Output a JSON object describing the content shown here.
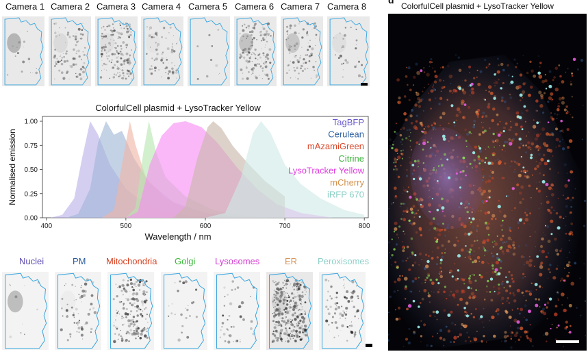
{
  "cameras": {
    "labels": [
      "Camera 1",
      "Camera 2",
      "Camera 3",
      "Camera 4",
      "Camera 5",
      "Camera 6",
      "Camera 7",
      "Camera 8"
    ]
  },
  "organelles": {
    "labels": [
      {
        "text": "Nuclei",
        "color": "#5b4ab0"
      },
      {
        "text": "PM",
        "color": "#2a5a9a"
      },
      {
        "text": "Mitochondria",
        "color": "#d8401f"
      },
      {
        "text": "Golgi",
        "color": "#3cb93c"
      },
      {
        "text": "Lysosomes",
        "color": "#d43cd4"
      },
      {
        "text": "ER",
        "color": "#d6955a"
      },
      {
        "text": "Peroxisomes",
        "color": "#8fd0c8"
      }
    ]
  },
  "chart_data": {
    "type": "area",
    "title": "ColorfulCell plasmid + LysoTracker Yellow",
    "xlabel": "Wavelength / nm",
    "ylabel": "Normalised emission",
    "xlim": [
      395,
      805
    ],
    "ylim": [
      0,
      1.05
    ],
    "xticks": [
      400,
      500,
      600,
      700,
      800
    ],
    "yticks": [
      0.0,
      0.25,
      0.5,
      0.75,
      1.0
    ],
    "ytick_labels": [
      "0.00",
      "0.25",
      "0.50",
      "0.75",
      "1.00"
    ],
    "legend_position": "top-right",
    "series": [
      {
        "name": "TagBFP",
        "color": "#6a5acd",
        "fill": "#b9b0e8",
        "points": [
          [
            405,
            0
          ],
          [
            420,
            0.03
          ],
          [
            435,
            0.2
          ],
          [
            445,
            0.62
          ],
          [
            455,
            1.0
          ],
          [
            465,
            0.86
          ],
          [
            480,
            0.55
          ],
          [
            500,
            0.3
          ],
          [
            525,
            0.14
          ],
          [
            550,
            0.06
          ],
          [
            580,
            0.02
          ],
          [
            610,
            0
          ]
        ]
      },
      {
        "name": "Cerulean",
        "color": "#2f5f9f",
        "fill": "#9fb6d6",
        "points": [
          [
            425,
            0
          ],
          [
            440,
            0.04
          ],
          [
            455,
            0.3
          ],
          [
            465,
            0.78
          ],
          [
            475,
            1.0
          ],
          [
            485,
            0.86
          ],
          [
            495,
            0.9
          ],
          [
            510,
            0.62
          ],
          [
            530,
            0.36
          ],
          [
            560,
            0.16
          ],
          [
            600,
            0.05
          ],
          [
            650,
            0
          ]
        ]
      },
      {
        "name": "mAzamiGreen",
        "color": "#d9482b",
        "fill": "#f0b5a5",
        "points": [
          [
            470,
            0
          ],
          [
            485,
            0.08
          ],
          [
            495,
            0.55
          ],
          [
            505,
            1.0
          ],
          [
            512,
            0.76
          ],
          [
            525,
            0.42
          ],
          [
            550,
            0.2
          ],
          [
            580,
            0.08
          ],
          [
            620,
            0.02
          ],
          [
            650,
            0
          ]
        ]
      },
      {
        "name": "Citrine",
        "color": "#3db33d",
        "fill": "#b6e6b0",
        "points": [
          [
            500,
            0
          ],
          [
            512,
            0.1
          ],
          [
            522,
            0.68
          ],
          [
            529,
            1.0
          ],
          [
            538,
            0.68
          ],
          [
            550,
            0.42
          ],
          [
            575,
            0.22
          ],
          [
            610,
            0.08
          ],
          [
            650,
            0.02
          ],
          [
            680,
            0
          ]
        ]
      },
      {
        "name": "LysoTracker Yellow",
        "color": "#e040e0",
        "fill": "#f78cf3",
        "points": [
          [
            500,
            0
          ],
          [
            515,
            0.06
          ],
          [
            530,
            0.55
          ],
          [
            545,
            0.85
          ],
          [
            560,
            0.98
          ],
          [
            575,
            1.0
          ],
          [
            595,
            0.94
          ],
          [
            615,
            0.78
          ],
          [
            640,
            0.52
          ],
          [
            665,
            0.3
          ],
          [
            690,
            0.14
          ],
          [
            720,
            0.05
          ],
          [
            760,
            0
          ]
        ]
      },
      {
        "name": "mCherry",
        "color": "#d3914e",
        "fill": "#c8b7aa",
        "points": [
          [
            560,
            0
          ],
          [
            575,
            0.12
          ],
          [
            590,
            0.62
          ],
          [
            603,
            0.94
          ],
          [
            610,
            1.0
          ],
          [
            620,
            0.93
          ],
          [
            635,
            0.74
          ],
          [
            655,
            0.55
          ],
          [
            675,
            0.38
          ],
          [
            700,
            0.22
          ],
          [
            700,
            0
          ]
        ]
      },
      {
        "name": "iRFP 670",
        "color": "#88cfc4",
        "fill": "#cfeae6",
        "points": [
          [
            600,
            0
          ],
          [
            625,
            0.05
          ],
          [
            645,
            0.42
          ],
          [
            660,
            0.88
          ],
          [
            670,
            1.0
          ],
          [
            682,
            0.88
          ],
          [
            700,
            0.55
          ],
          [
            720,
            0.35
          ],
          [
            745,
            0.2
          ],
          [
            775,
            0.08
          ],
          [
            800,
            0.03
          ],
          [
            800,
            0
          ]
        ]
      }
    ]
  },
  "panel_d": {
    "letter": "d",
    "title": "ColorfulCell plasmid + LysoTracker Yellow"
  }
}
